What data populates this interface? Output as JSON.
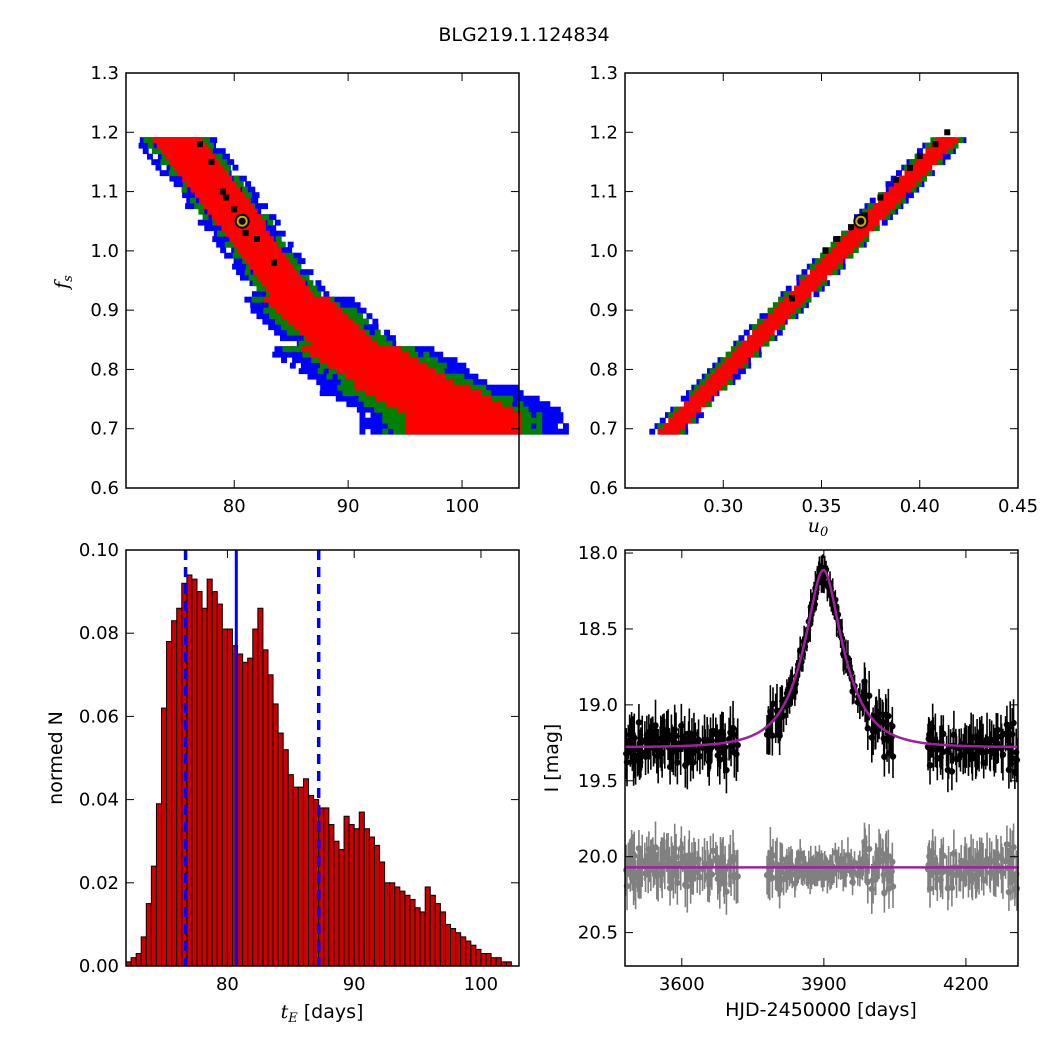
{
  "figure": {
    "title": "BLG219.1.124834"
  },
  "colors": {
    "sigma1": "#ff0000",
    "sigma2": "#008000",
    "sigma3": "#0000ff",
    "density_peak": "#000000",
    "best_fit_marker_edge": "#000000",
    "best_fit_marker_ring": "#ccaa00",
    "histogram_bar": "#cc0000",
    "histogram_edge": "#000000",
    "median_line": "#0000ff",
    "model_curve": "#a020a0",
    "data_points": "#000000",
    "residual_points": "#808080"
  },
  "chart_data": [
    {
      "id": "tE_vs_fs",
      "type": "heatmap",
      "title": "",
      "xlabel": "",
      "ylabel": "f_s",
      "xlim": [
        70.5,
        105
      ],
      "ylim": [
        0.6,
        1.3
      ],
      "xticks": [
        "80",
        "90",
        "100"
      ],
      "yticks": [
        "0.6",
        "0.7",
        "0.8",
        "0.9",
        "1.0",
        "1.1",
        "1.2",
        "1.3"
      ],
      "xtick_values": [
        80,
        90,
        100
      ],
      "ytick_values": [
        0.6,
        0.7,
        0.8,
        0.9,
        1.0,
        1.1,
        1.2,
        1.3
      ],
      "confidence_band": {
        "centerline": [
          [
            74.5,
            1.2
          ],
          [
            80.5,
            1.05
          ],
          [
            85,
            0.93
          ],
          [
            90,
            0.84
          ],
          [
            95,
            0.78
          ],
          [
            100,
            0.73
          ]
        ],
        "half_widths_fs": {
          "sigma1": 0.05,
          "sigma2": 0.07,
          "sigma3": 0.09
        },
        "fs_range": [
          0.7,
          1.2
        ]
      },
      "density_peaks": [
        [
          77,
          1.18
        ],
        [
          78,
          1.15
        ],
        [
          79,
          1.1
        ],
        [
          79.3,
          1.09
        ],
        [
          80,
          1.07
        ],
        [
          81,
          1.03
        ],
        [
          82,
          1.02
        ],
        [
          83.5,
          0.98
        ]
      ],
      "best_fit": {
        "x": 80.7,
        "y": 1.05
      }
    },
    {
      "id": "u0_vs_fs",
      "type": "heatmap",
      "title": "",
      "xlabel": "u_0",
      "ylabel": "",
      "xlim": [
        0.25,
        0.45
      ],
      "ylim": [
        0.6,
        1.3
      ],
      "xticks": [
        "0.30",
        "0.35",
        "0.40",
        "0.45"
      ],
      "yticks": [
        "0.6",
        "0.7",
        "0.8",
        "0.9",
        "1.0",
        "1.1",
        "1.2",
        "1.3"
      ],
      "xtick_values": [
        0.3,
        0.35,
        0.4,
        0.45
      ],
      "ytick_values": [
        0.6,
        0.7,
        0.8,
        0.9,
        1.0,
        1.1,
        1.2,
        1.3
      ],
      "confidence_band": {
        "centerline": [
          [
            0.271,
            0.7
          ],
          [
            0.415,
            1.2
          ]
        ],
        "half_widths_fs": {
          "sigma1": 0.015,
          "sigma2": 0.025,
          "sigma3": 0.03
        },
        "fs_range": [
          0.7,
          1.2
        ]
      },
      "density_peaks": [
        [
          0.352,
          1.0
        ],
        [
          0.358,
          1.02
        ],
        [
          0.365,
          1.04
        ],
        [
          0.372,
          1.06
        ],
        [
          0.38,
          1.09
        ],
        [
          0.388,
          1.12
        ],
        [
          0.395,
          1.14
        ],
        [
          0.4,
          1.16
        ],
        [
          0.408,
          1.18
        ],
        [
          0.414,
          1.2
        ],
        [
          0.335,
          0.92
        ]
      ],
      "best_fit": {
        "x": 0.37,
        "y": 1.05
      }
    },
    {
      "id": "tE_histogram",
      "type": "bar",
      "title": "",
      "xlabel": "t_E",
      "xlabel_unit": "[days]",
      "ylabel": "normed N",
      "xlim": [
        72,
        103
      ],
      "ylim": [
        0,
        0.1
      ],
      "xticks": [
        "80",
        "90",
        "100"
      ],
      "yticks": [
        "0.00",
        "0.02",
        "0.04",
        "0.06",
        "0.08",
        "0.10"
      ],
      "xtick_values": [
        80,
        90,
        100
      ],
      "ytick_values": [
        0.0,
        0.02,
        0.04,
        0.06,
        0.08,
        0.1
      ],
      "bin_start": 72.0,
      "bin_width": 0.4,
      "values": [
        0.001,
        0.002,
        0.003,
        0.007,
        0.015,
        0.024,
        0.039,
        0.062,
        0.078,
        0.083,
        0.086,
        0.092,
        0.094,
        0.093,
        0.09,
        0.086,
        0.093,
        0.09,
        0.087,
        0.081,
        0.081,
        0.077,
        0.075,
        0.073,
        0.074,
        0.081,
        0.086,
        0.076,
        0.07,
        0.063,
        0.056,
        0.052,
        0.046,
        0.043,
        0.043,
        0.045,
        0.041,
        0.04,
        0.038,
        0.038,
        0.034,
        0.03,
        0.028,
        0.036,
        0.034,
        0.033,
        0.037,
        0.033,
        0.031,
        0.029,
        0.025,
        0.02,
        0.02,
        0.019,
        0.018,
        0.017,
        0.016,
        0.014,
        0.013,
        0.019,
        0.017,
        0.015,
        0.013,
        0.01,
        0.009,
        0.008,
        0.007,
        0.006,
        0.005,
        0.004,
        0.003,
        0.003,
        0.002,
        0.002,
        0.001,
        0.001
      ],
      "median": 80.7,
      "interval": [
        76.7,
        87.2
      ]
    },
    {
      "id": "lightcurve",
      "type": "scatter",
      "title": "",
      "xlabel": "HJD-2450000 [days]",
      "ylabel": "I [mag]",
      "xlim": [
        3480,
        4310
      ],
      "ylim": [
        20.72,
        17.98
      ],
      "xticks": [
        "3600",
        "3900",
        "4200"
      ],
      "yticks": [
        "18.0",
        "18.5",
        "19.0",
        "19.5",
        "20.0",
        "20.5"
      ],
      "xtick_values": [
        3600,
        3900,
        4200
      ],
      "ytick_values": [
        18.0,
        18.5,
        19.0,
        19.5,
        20.0,
        20.5
      ],
      "model": {
        "t0": 3899,
        "tE": 80.7,
        "u0": 0.37,
        "baseline_mag": 19.28,
        "fs": 1.05
      },
      "residual_baseline_mag": 20.07,
      "observing_seasons": [
        [
          3480,
          3720
        ],
        [
          3780,
          4050
        ],
        [
          4120,
          4310
        ]
      ]
    }
  ]
}
